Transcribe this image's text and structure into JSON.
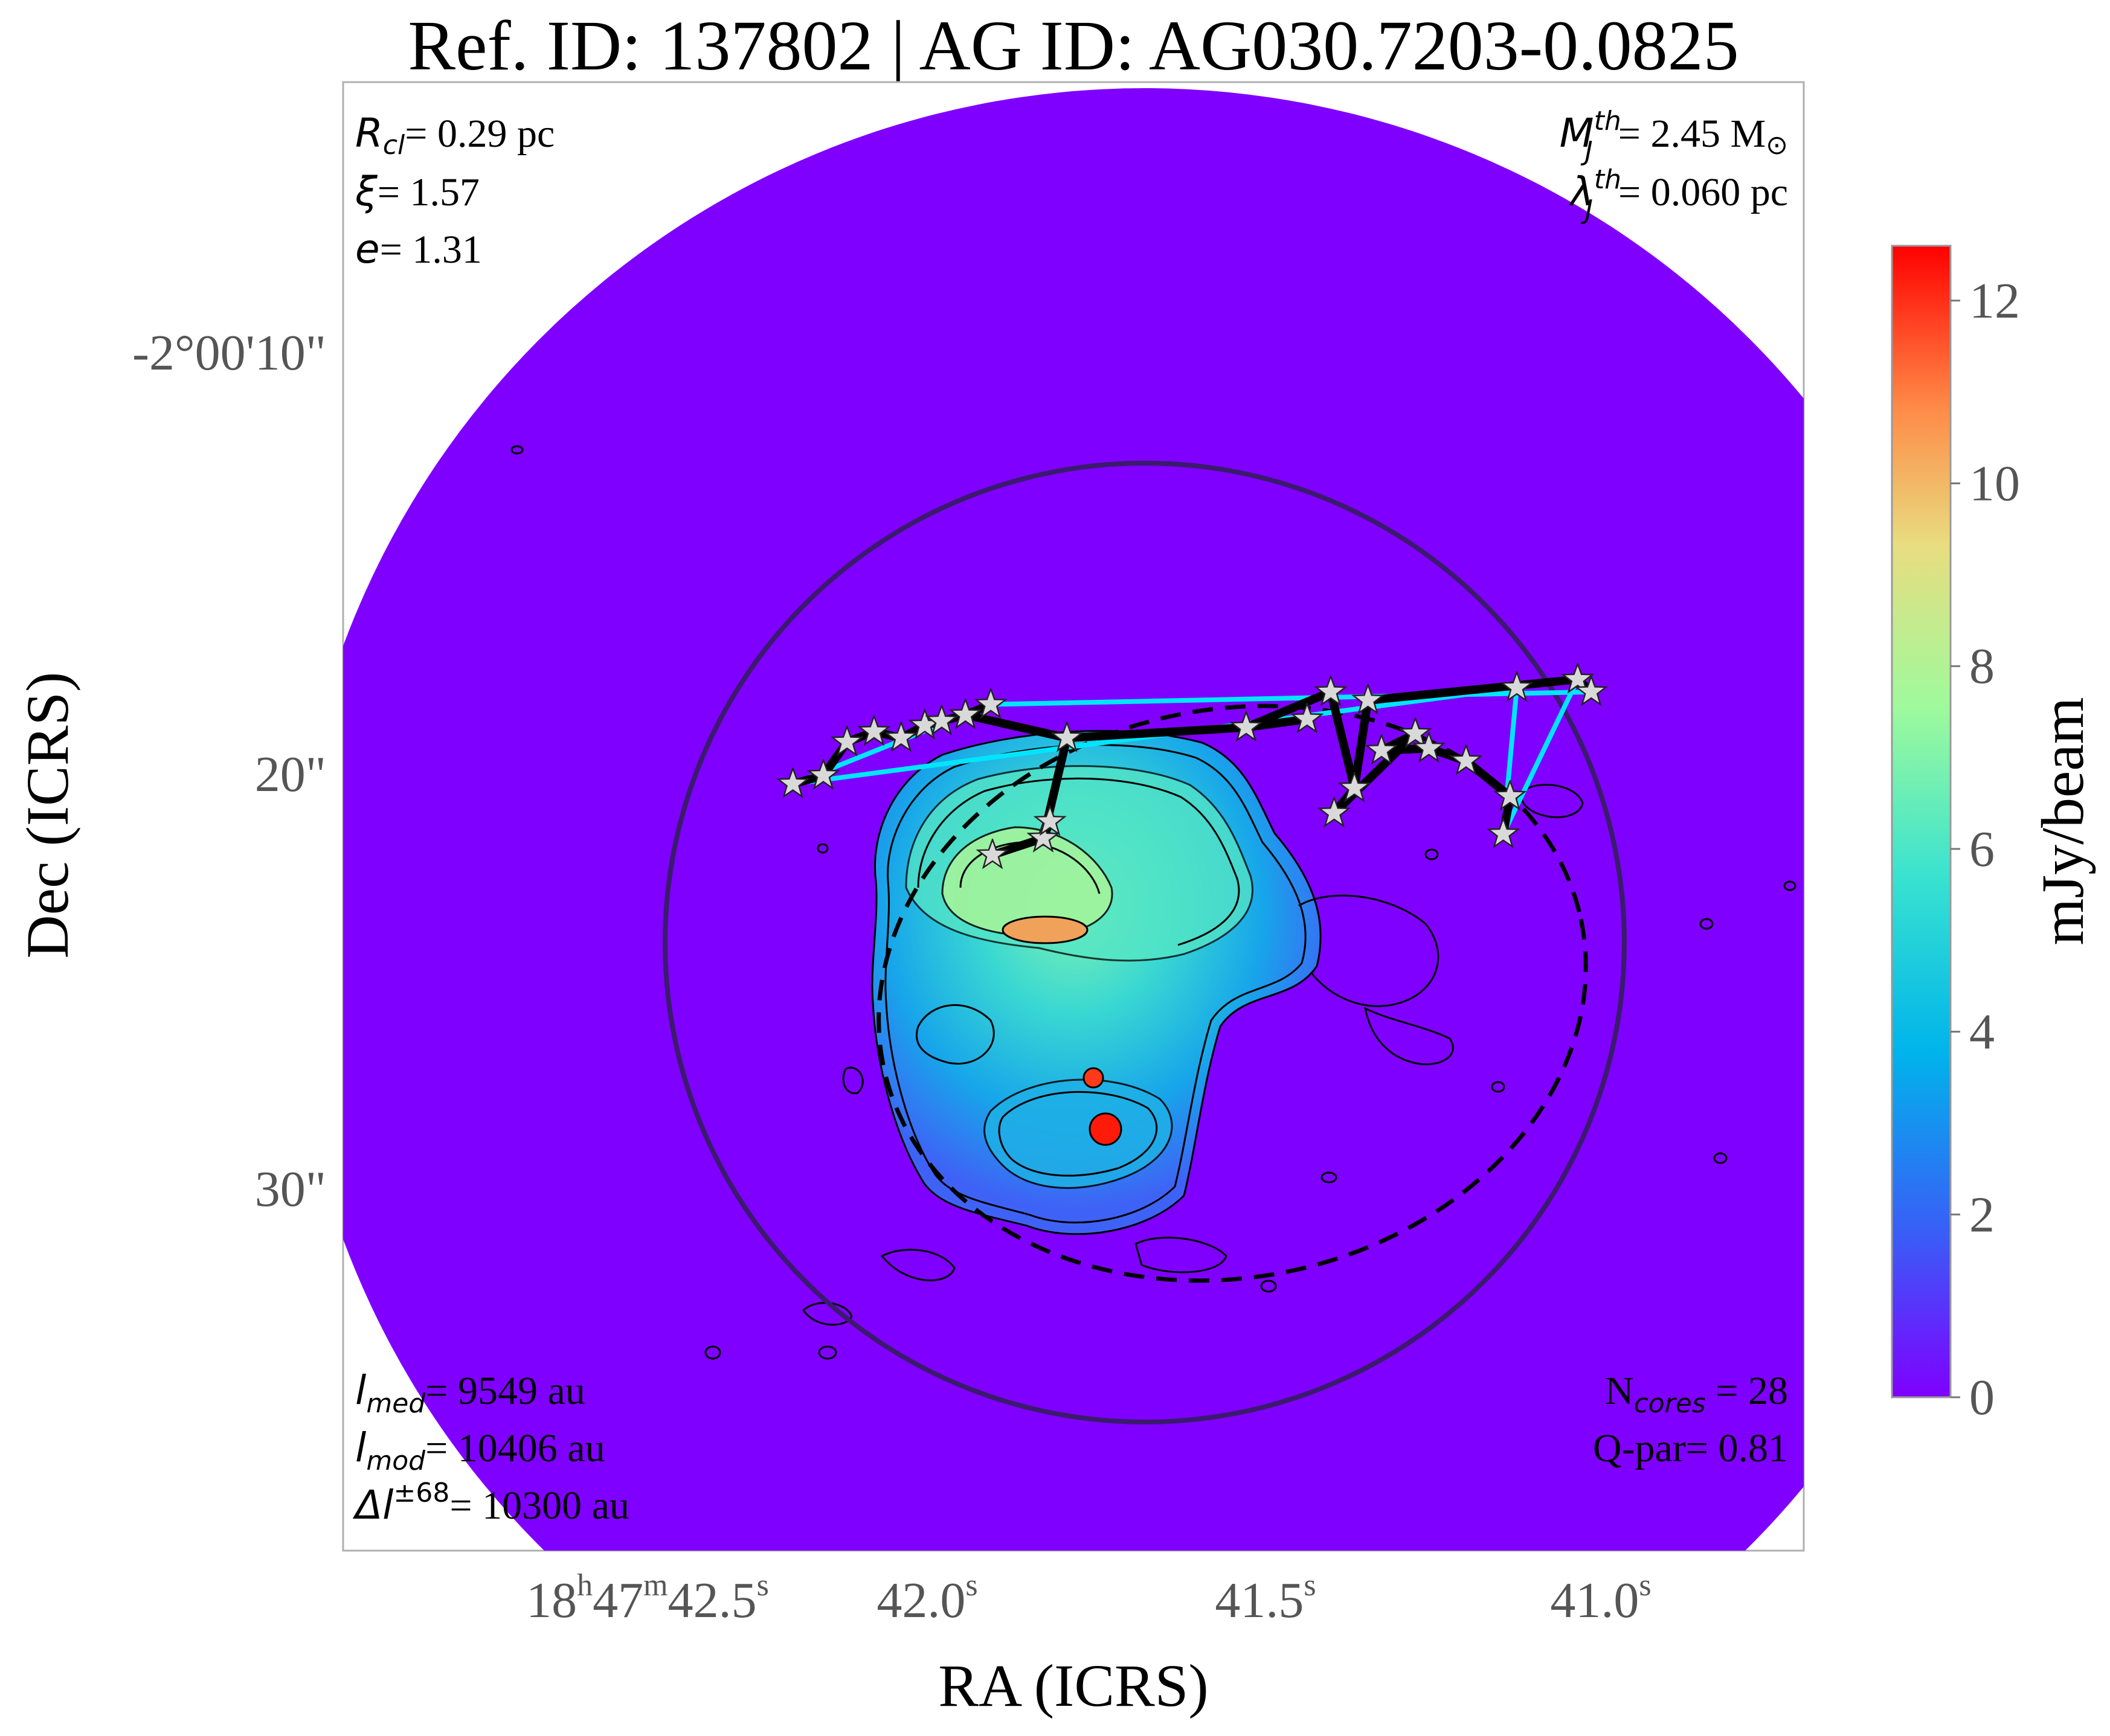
{
  "chart_data": {
    "type": "heatmap",
    "title": "Ref. ID: 137802 | AG ID: AG030.7203-0.0825",
    "xlabel": "RA (ICRS)",
    "ylabel": "Dec (ICRS)",
    "x_ticks": [
      {
        "h": "18",
        "hs": "h",
        "m": "47",
        "ms": "m",
        "s": "42.5",
        "ss": "s"
      },
      {
        "s": "42.0",
        "ss": "s"
      },
      {
        "s": "41.5",
        "ss": "s"
      },
      {
        "s": "41.0",
        "ss": "s"
      }
    ],
    "y_ticks": [
      "-2°00'10\"",
      "20\"",
      "30\""
    ],
    "colorbar": {
      "label": "mJy/beam",
      "ticks": [
        "0",
        "2",
        "4",
        "6",
        "8",
        "10",
        "12"
      ],
      "range": [
        0,
        12.6
      ],
      "colors": [
        "#7f00ff",
        "#2f7af5",
        "#00b4eb",
        "#4ee6c8",
        "#9ffa9c",
        "#ffc270",
        "#ff6c3a",
        "#ff0000"
      ]
    },
    "annotations_top_left": {
      "r_cl": {
        "sym": "R",
        "sub": "cl",
        "value": "= 0.29 pc"
      },
      "xi": {
        "sym": "ξ",
        "value": "= 1.57"
      },
      "e": {
        "sym": "e",
        "value": "= 1.31"
      }
    },
    "annotations_top_right": {
      "mj": {
        "sym": "M",
        "sub": "J",
        "sup": "th",
        "value": "= 2.45 M",
        "odot": "⊙"
      },
      "lj": {
        "sym": "λ",
        "sub": "J",
        "sup": "th",
        "value": "= 0.060 pc"
      }
    },
    "annotations_bottom_left": {
      "lmed": {
        "sym": "l",
        "sub": "med",
        "value": "= 9549 au"
      },
      "lmod": {
        "sym": "l",
        "sub": "mod",
        "value": "= 10406 au"
      },
      "dl": {
        "sym": "Δl",
        "sup": "±68",
        "value": "= 10300 au"
      }
    },
    "annotations_bottom_right": {
      "ncores": {
        "text": "N",
        "sub": "cores",
        "value": " = 28"
      },
      "qpar": {
        "value": "Q-par= 0.81"
      }
    },
    "colors": {
      "background_map": "#7f00ff",
      "hull": "#00e5ff",
      "mst": "#000000",
      "circle": "#3b1a6e",
      "star_fill": "#d9d9d9"
    },
    "cores": [
      [
        1.04,
        10.4
      ],
      [
        0.95,
        10.2
      ],
      [
        0.88,
        9.4
      ],
      [
        0.8,
        9.15
      ],
      [
        0.72,
        9.3
      ],
      [
        0.65,
        9.0
      ],
      [
        0.6,
        8.9
      ],
      [
        0.53,
        8.75
      ],
      [
        0.455,
        8.5
      ],
      [
        0.23,
        9.3
      ],
      [
        0.3,
        11.7
      ],
      [
        0.45,
        12.1
      ],
      [
        0.28,
        11.3
      ],
      [
        -0.3,
        9.05
      ],
      [
        -0.55,
        8.2
      ],
      [
        -0.48,
        8.85
      ],
      [
        -0.62,
        10.5
      ],
      [
        -0.66,
        8.4
      ],
      [
        -0.56,
        11.1
      ],
      [
        -0.8,
        9.2
      ],
      [
        -0.7,
        9.6
      ],
      [
        -0.84,
        9.55
      ],
      [
        -0.95,
        9.85
      ],
      [
        -1.08,
        10.7
      ],
      [
        -1.06,
        11.6
      ],
      [
        -1.1,
        8.1
      ],
      [
        -1.28,
        7.9
      ],
      [
        -1.32,
        8.2
      ]
    ],
    "mst_edges": [
      [
        0,
        1
      ],
      [
        1,
        2
      ],
      [
        2,
        3
      ],
      [
        3,
        4
      ],
      [
        4,
        5
      ],
      [
        5,
        6
      ],
      [
        6,
        7
      ],
      [
        7,
        8
      ],
      [
        7,
        9
      ],
      [
        9,
        10
      ],
      [
        10,
        11
      ],
      [
        10,
        12
      ],
      [
        9,
        13
      ],
      [
        13,
        14
      ],
      [
        13,
        15
      ],
      [
        14,
        16
      ],
      [
        16,
        17
      ],
      [
        17,
        26
      ],
      [
        26,
        27
      ],
      [
        16,
        18
      ],
      [
        18,
        19
      ],
      [
        19,
        20
      ],
      [
        20,
        21
      ],
      [
        21,
        22
      ],
      [
        22,
        23
      ],
      [
        23,
        24
      ]
    ],
    "hull": [
      0,
      8,
      27,
      26,
      24,
      25
    ]
  }
}
